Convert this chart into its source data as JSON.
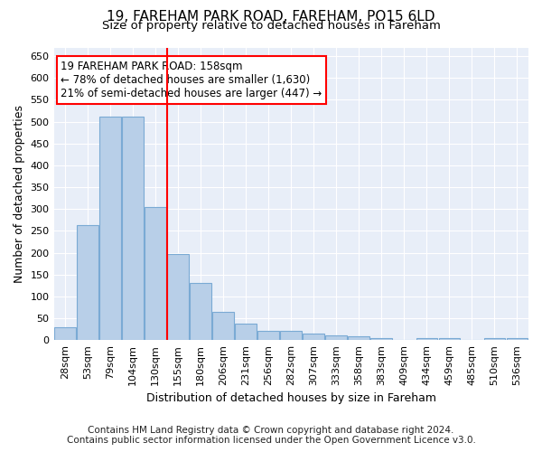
{
  "title_line1": "19, FAREHAM PARK ROAD, FAREHAM, PO15 6LD",
  "title_line2": "Size of property relative to detached houses in Fareham",
  "xlabel": "Distribution of detached houses by size in Fareham",
  "ylabel": "Number of detached properties",
  "footer_line1": "Contains HM Land Registry data © Crown copyright and database right 2024.",
  "footer_line2": "Contains public sector information licensed under the Open Government Licence v3.0.",
  "annotation_line1": "19 FAREHAM PARK ROAD: 158sqm",
  "annotation_line2": "← 78% of detached houses are smaller (1,630)",
  "annotation_line3": "21% of semi-detached houses are larger (447) →",
  "bin_labels": [
    "28sqm",
    "53sqm",
    "79sqm",
    "104sqm",
    "130sqm",
    "155sqm",
    "180sqm",
    "206sqm",
    "231sqm",
    "256sqm",
    "282sqm",
    "307sqm",
    "333sqm",
    "358sqm",
    "383sqm",
    "409sqm",
    "434sqm",
    "459sqm",
    "485sqm",
    "510sqm",
    "536sqm"
  ],
  "bar_values": [
    30,
    263,
    511,
    511,
    305,
    197,
    131,
    65,
    38,
    22,
    22,
    15,
    10,
    9,
    5,
    0,
    5,
    5,
    0,
    5,
    5
  ],
  "bar_color": "#b8cfe8",
  "bar_edge_color": "#7aaad4",
  "red_line_x": 4.5,
  "ylim": [
    0,
    670
  ],
  "yticks": [
    0,
    50,
    100,
    150,
    200,
    250,
    300,
    350,
    400,
    450,
    500,
    550,
    600,
    650
  ],
  "bg_color": "#ffffff",
  "plot_bg_color": "#e8eef8",
  "annotation_box_facecolor": "white",
  "annotation_box_edgecolor": "red",
  "red_line_color": "red",
  "title_fontsize": 11,
  "subtitle_fontsize": 9.5,
  "axis_label_fontsize": 9,
  "tick_fontsize": 8,
  "annotation_fontsize": 8.5,
  "footer_fontsize": 7.5
}
